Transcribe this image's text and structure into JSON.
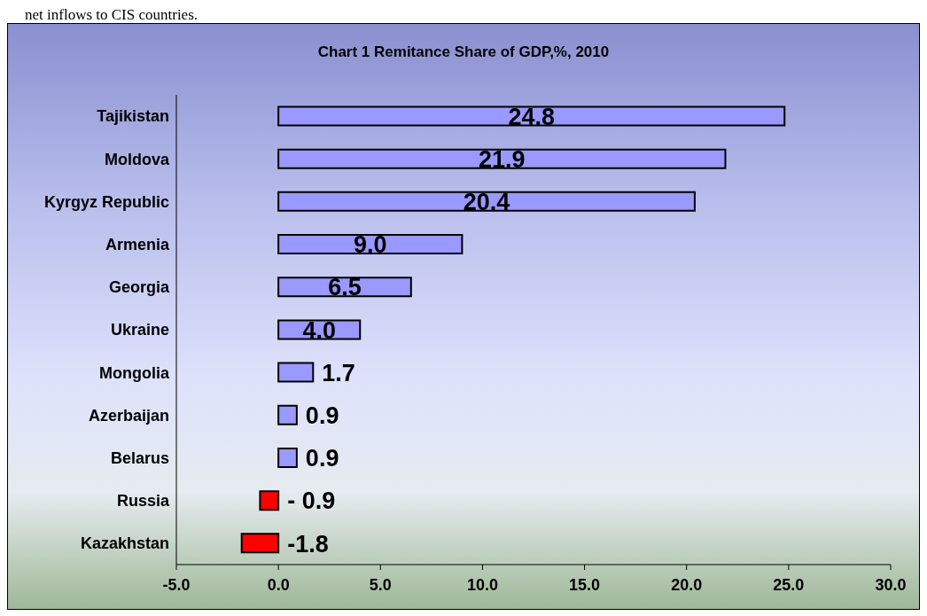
{
  "chart_data": {
    "type": "bar",
    "orientation": "horizontal",
    "title": "Chart 1 Remitance Share of GDP,%, 2010",
    "annotations": [
      "net inflows to CIS countries."
    ],
    "categories": [
      "Tajikistan",
      "Moldova",
      "Kyrgyz Republic",
      "Armenia",
      "Georgia",
      "Ukraine",
      "Mongolia",
      "Azerbaijan",
      "Belarus",
      "Russia",
      "Kazakhstan"
    ],
    "values": [
      24.8,
      21.9,
      20.4,
      9.0,
      6.5,
      4.0,
      1.7,
      0.9,
      0.9,
      -0.9,
      -1.8
    ],
    "colors": [
      "#9999ff",
      "#9999ff",
      "#9999ff",
      "#9999ff",
      "#9999ff",
      "#9999ff",
      "#9999ff",
      "#9999ff",
      "#9999ff",
      "#ff0000",
      "#ff0000"
    ],
    "value_labels": [
      "24.8",
      "21.9",
      "20.4",
      "9.0",
      "6.5",
      "4.0",
      "1.7",
      "0.9",
      "0.9",
      "- 0.9",
      "-1.8"
    ],
    "xlim": [
      -5,
      30
    ],
    "xticks": [
      {
        "value": -5,
        "label": "-5.0"
      },
      {
        "value": 0,
        "label": "0.0"
      },
      {
        "value": 5,
        "label": "5.0"
      },
      {
        "value": 10,
        "label": "10.0"
      },
      {
        "value": 15,
        "label": "15.0"
      },
      {
        "value": 20,
        "label": "20.0"
      },
      {
        "value": 25,
        "label": "25.0"
      },
      {
        "value": 30,
        "label": "30.0"
      }
    ],
    "grid": false,
    "legend": false
  }
}
